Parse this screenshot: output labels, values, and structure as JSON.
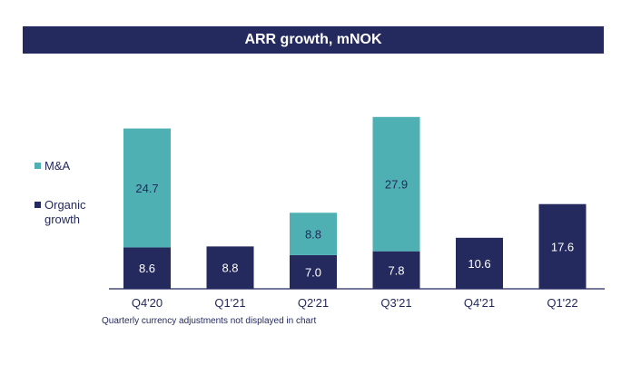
{
  "chart_data": {
    "type": "bar",
    "stacked": true,
    "title": "ARR growth, mNOK",
    "categories": [
      "Q4'20",
      "Q1'21",
      "Q2'21",
      "Q3'21",
      "Q4'21",
      "Q1'22"
    ],
    "series": [
      {
        "name": "Organic growth",
        "values": [
          8.6,
          8.8,
          7.0,
          7.8,
          10.6,
          17.6
        ],
        "color": "#242a5e"
      },
      {
        "name": "M&A",
        "values": [
          24.7,
          null,
          8.8,
          27.9,
          null,
          null
        ],
        "color": "#4eb0b3"
      }
    ],
    "value_labels": {
      "organic": [
        "8.6",
        "8.8",
        "7.0",
        "7.8",
        "10.6",
        "17.6"
      ],
      "ma": [
        "24.7",
        "",
        "8.8",
        "27.9",
        "",
        ""
      ]
    },
    "legend": {
      "placement": "left",
      "items": [
        "M&A",
        "Organic growth"
      ]
    },
    "grid": false
  },
  "legend": {
    "ma_label": "M&A",
    "organic_label": "Organic growth"
  },
  "footnote": "Quarterly currency adjustments not displayed in chart",
  "colors": {
    "organic": "#242a5e",
    "ma": "#4eb0b3",
    "title_bg": "#242a5e"
  }
}
